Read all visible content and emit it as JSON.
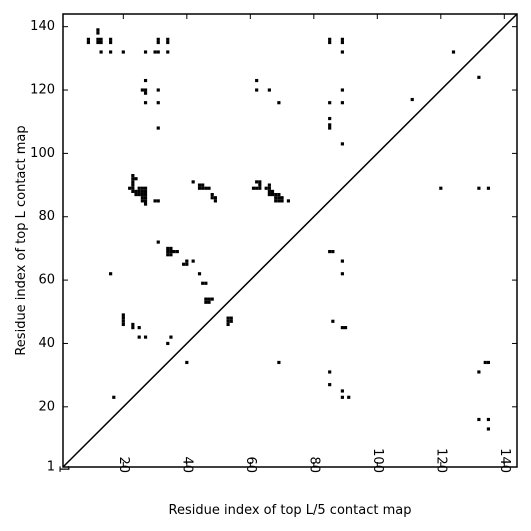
{
  "chart_data": {
    "type": "scatter",
    "xlabel": "Residue index of top L/5 contact map",
    "ylabel": "Residue index of top L contact map",
    "xlim": [
      1,
      144
    ],
    "ylim": [
      1,
      144
    ],
    "x_ticks": [
      {
        "value": 1,
        "label": "1"
      },
      {
        "value": 20,
        "label": "20"
      },
      {
        "value": 40,
        "label": "40"
      },
      {
        "value": 60,
        "label": "60"
      },
      {
        "value": 80,
        "label": "80"
      },
      {
        "value": 100,
        "label": "100"
      },
      {
        "value": 120,
        "label": "120"
      },
      {
        "value": 140,
        "label": "140"
      }
    ],
    "y_ticks": [
      {
        "value": 1,
        "label": "1"
      },
      {
        "value": 20,
        "label": "20"
      },
      {
        "value": 40,
        "label": "40"
      },
      {
        "value": 60,
        "label": "60"
      },
      {
        "value": 80,
        "label": "80"
      },
      {
        "value": 100,
        "label": "100"
      },
      {
        "value": 120,
        "label": "120"
      },
      {
        "value": 140,
        "label": "140"
      }
    ],
    "x_tick_rotation": -90,
    "grid": false,
    "legend": "none",
    "marker": "square",
    "diagonal_line": {
      "from": [
        1,
        1
      ],
      "to": [
        144,
        144
      ]
    },
    "colors": {
      "points": "#000000",
      "diagonal": "#000000",
      "axes": "#000000"
    },
    "points": [
      [
        9,
        135
      ],
      [
        9,
        136
      ],
      [
        12,
        135
      ],
      [
        12,
        136
      ],
      [
        13,
        135
      ],
      [
        13,
        136
      ],
      [
        12,
        138
      ],
      [
        12,
        139
      ],
      [
        13,
        132
      ],
      [
        16,
        132
      ],
      [
        16,
        135
      ],
      [
        16,
        136
      ],
      [
        20,
        132
      ],
      [
        27,
        132
      ],
      [
        30,
        132
      ],
      [
        31,
        132
      ],
      [
        31,
        135
      ],
      [
        31,
        136
      ],
      [
        34,
        132
      ],
      [
        34,
        135
      ],
      [
        34,
        136
      ],
      [
        27,
        123
      ],
      [
        26,
        120
      ],
      [
        27,
        119
      ],
      [
        27,
        120
      ],
      [
        27,
        116
      ],
      [
        31,
        120
      ],
      [
        31,
        116
      ],
      [
        31,
        108
      ],
      [
        62,
        123
      ],
      [
        62,
        120
      ],
      [
        66,
        120
      ],
      [
        69,
        116
      ],
      [
        85,
        136
      ],
      [
        85,
        135
      ],
      [
        89,
        136
      ],
      [
        89,
        135
      ],
      [
        89,
        132
      ],
      [
        124,
        132
      ],
      [
        132,
        124
      ],
      [
        89,
        120
      ],
      [
        85,
        116
      ],
      [
        89,
        116
      ],
      [
        85,
        111
      ],
      [
        85,
        108
      ],
      [
        85,
        109
      ],
      [
        111,
        117
      ],
      [
        89,
        103
      ],
      [
        22,
        89
      ],
      [
        23,
        88
      ],
      [
        23,
        89
      ],
      [
        23,
        90
      ],
      [
        23,
        91
      ],
      [
        23,
        92
      ],
      [
        23,
        93
      ],
      [
        24,
        92
      ],
      [
        24,
        88
      ],
      [
        24,
        87
      ],
      [
        25,
        89
      ],
      [
        25,
        88
      ],
      [
        25,
        87
      ],
      [
        26,
        89
      ],
      [
        26,
        88
      ],
      [
        26,
        87
      ],
      [
        26,
        86
      ],
      [
        26,
        85
      ],
      [
        27,
        89
      ],
      [
        27,
        88
      ],
      [
        27,
        87
      ],
      [
        27,
        86
      ],
      [
        27,
        85
      ],
      [
        27,
        84
      ],
      [
        30,
        85
      ],
      [
        31,
        85
      ],
      [
        42,
        91
      ],
      [
        44,
        90
      ],
      [
        45,
        90
      ],
      [
        44,
        89
      ],
      [
        45,
        89
      ],
      [
        46,
        89
      ],
      [
        47,
        89
      ],
      [
        48,
        87
      ],
      [
        48,
        86
      ],
      [
        49,
        86
      ],
      [
        49,
        85
      ],
      [
        61,
        89
      ],
      [
        62,
        89
      ],
      [
        63,
        89
      ],
      [
        62,
        91
      ],
      [
        63,
        91
      ],
      [
        63,
        90
      ],
      [
        65,
        89
      ],
      [
        66,
        89
      ],
      [
        66,
        90
      ],
      [
        66,
        88
      ],
      [
        67,
        88
      ],
      [
        67,
        87
      ],
      [
        66,
        87
      ],
      [
        68,
        87
      ],
      [
        68,
        86
      ],
      [
        68,
        85
      ],
      [
        69,
        87
      ],
      [
        69,
        86
      ],
      [
        69,
        85
      ],
      [
        70,
        86
      ],
      [
        70,
        85
      ],
      [
        72,
        85
      ],
      [
        120,
        89
      ],
      [
        132,
        89
      ],
      [
        135,
        89
      ],
      [
        31,
        72
      ],
      [
        34,
        70
      ],
      [
        34,
        69
      ],
      [
        34,
        68
      ],
      [
        35,
        70
      ],
      [
        35,
        69
      ],
      [
        35,
        68
      ],
      [
        36,
        69
      ],
      [
        37,
        69
      ],
      [
        39,
        65
      ],
      [
        40,
        66
      ],
      [
        40,
        65
      ],
      [
        42,
        66
      ],
      [
        44,
        62
      ],
      [
        45,
        59
      ],
      [
        46,
        59
      ],
      [
        46,
        54
      ],
      [
        46,
        53
      ],
      [
        47,
        54
      ],
      [
        47,
        53
      ],
      [
        48,
        54
      ],
      [
        53,
        48
      ],
      [
        53,
        47
      ],
      [
        53,
        46
      ],
      [
        54,
        48
      ],
      [
        54,
        47
      ],
      [
        16,
        62
      ],
      [
        20,
        49
      ],
      [
        20,
        48
      ],
      [
        20,
        47
      ],
      [
        20,
        46
      ],
      [
        23,
        46
      ],
      [
        23,
        45
      ],
      [
        25,
        45
      ],
      [
        25,
        42
      ],
      [
        27,
        42
      ],
      [
        34,
        40
      ],
      [
        35,
        42
      ],
      [
        85,
        69
      ],
      [
        86,
        69
      ],
      [
        89,
        66
      ],
      [
        89,
        62
      ],
      [
        86,
        47
      ],
      [
        89,
        45
      ],
      [
        90,
        45
      ],
      [
        40,
        34
      ],
      [
        69,
        34
      ],
      [
        85,
        31
      ],
      [
        85,
        27
      ],
      [
        89,
        25
      ],
      [
        89,
        23
      ],
      [
        91,
        23
      ],
      [
        17,
        23
      ],
      [
        132,
        31
      ],
      [
        134,
        34
      ],
      [
        135,
        34
      ],
      [
        132,
        16
      ],
      [
        135,
        16
      ],
      [
        135,
        13
      ]
    ]
  }
}
